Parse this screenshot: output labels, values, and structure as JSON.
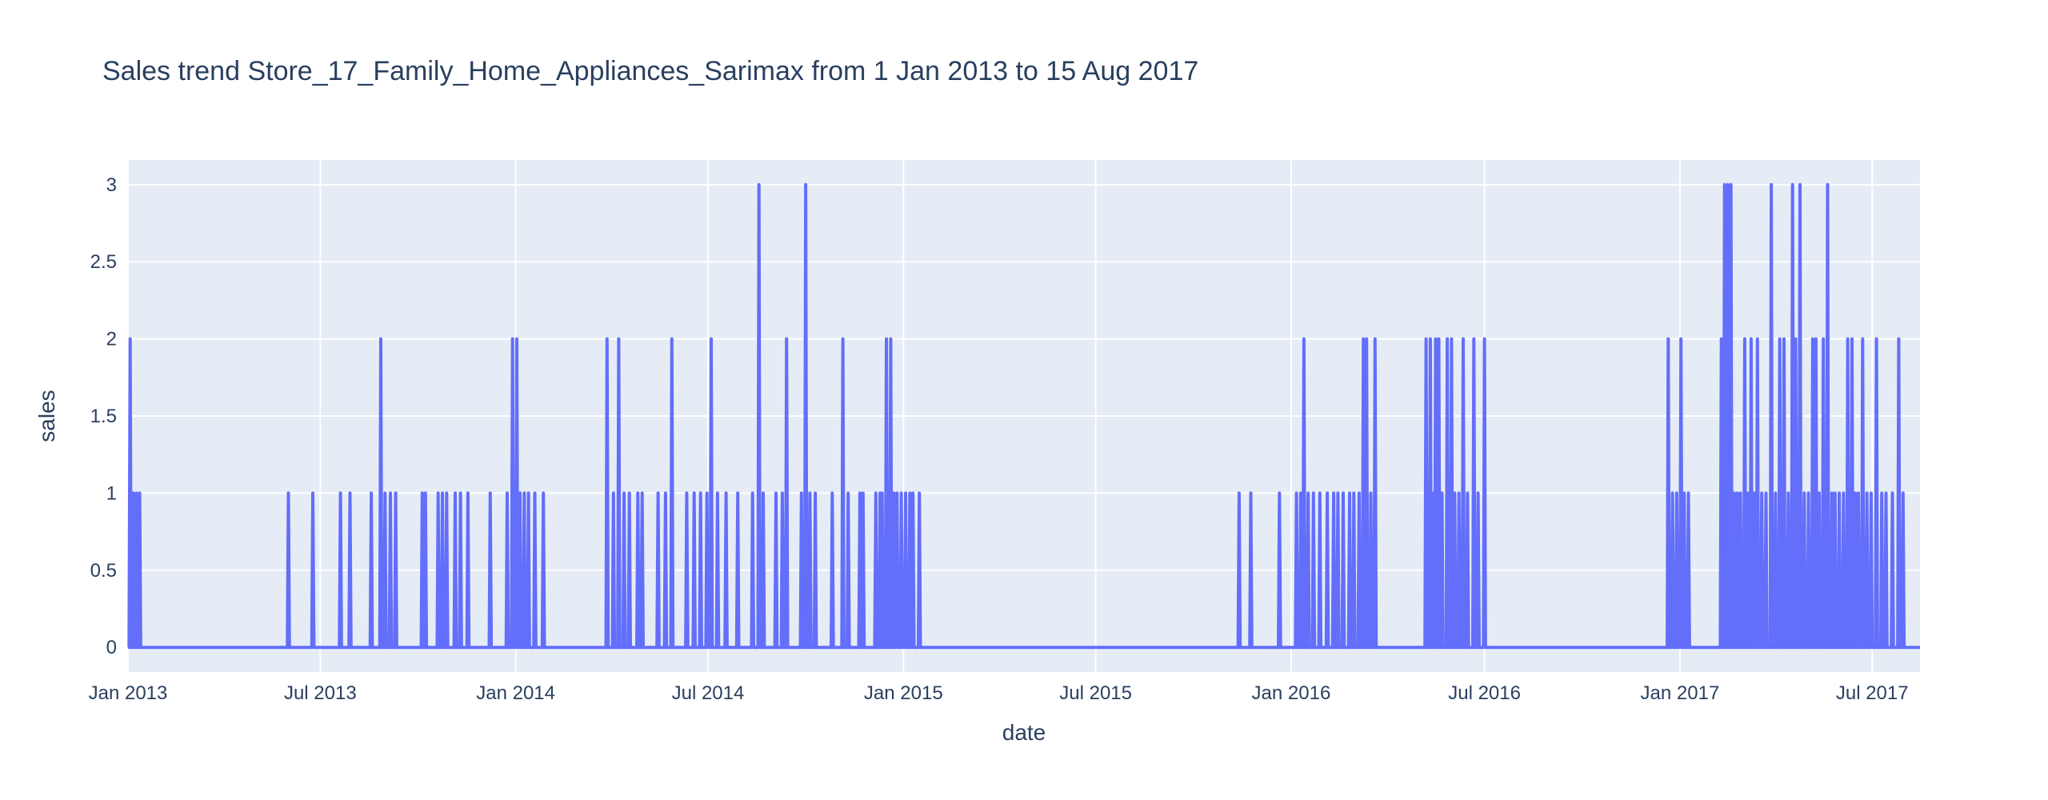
{
  "chart_data": {
    "type": "line",
    "title": "Sales trend Store_17_Family_Home_Appliances_Sarimax from  1 Jan 2013 to 15 Aug 2017",
    "xlabel": "date",
    "ylabel": "sales",
    "x_range": [
      "2013-01-01",
      "2017-08-15"
    ],
    "ylim": [
      -0.16,
      3.16
    ],
    "x_ticks": [
      {
        "date": "2013-01-01",
        "label": "Jan 2013"
      },
      {
        "date": "2013-07-01",
        "label": "Jul 2013"
      },
      {
        "date": "2014-01-01",
        "label": "Jan 2014"
      },
      {
        "date": "2014-07-01",
        "label": "Jul 2014"
      },
      {
        "date": "2015-01-01",
        "label": "Jan 2015"
      },
      {
        "date": "2015-07-01",
        "label": "Jul 2015"
      },
      {
        "date": "2016-01-01",
        "label": "Jan 2016"
      },
      {
        "date": "2016-07-01",
        "label": "Jul 2016"
      },
      {
        "date": "2017-01-01",
        "label": "Jan 2017"
      },
      {
        "date": "2017-07-01",
        "label": "Jul 2017"
      }
    ],
    "y_ticks": [
      {
        "value": 0,
        "label": "0"
      },
      {
        "value": 0.5,
        "label": "0.5"
      },
      {
        "value": 1,
        "label": "1"
      },
      {
        "value": 1.5,
        "label": "1.5"
      },
      {
        "value": 2,
        "label": "2"
      },
      {
        "value": 2.5,
        "label": "2.5"
      },
      {
        "value": 3,
        "label": "3"
      }
    ],
    "grid": true,
    "legend": "none",
    "series": [
      {
        "color": "#636efa",
        "spikes": [
          [
            "2013-01-03",
            2
          ],
          [
            "2013-01-06",
            1
          ],
          [
            "2013-01-09",
            1
          ],
          [
            "2013-01-12",
            1
          ],
          [
            "2013-06-01",
            1
          ],
          [
            "2013-06-24",
            1
          ],
          [
            "2013-07-20",
            1
          ],
          [
            "2013-07-29",
            1
          ],
          [
            "2013-08-18",
            1
          ],
          [
            "2013-08-27",
            2
          ],
          [
            "2013-08-31",
            1
          ],
          [
            "2013-09-05",
            1
          ],
          [
            "2013-09-10",
            1
          ],
          [
            "2013-10-05",
            1
          ],
          [
            "2013-10-08",
            1
          ],
          [
            "2013-10-20",
            1
          ],
          [
            "2013-10-24",
            1
          ],
          [
            "2013-10-28",
            1
          ],
          [
            "2013-11-05",
            1
          ],
          [
            "2013-11-10",
            1
          ],
          [
            "2013-11-17",
            1
          ],
          [
            "2013-12-08",
            1
          ],
          [
            "2013-12-24",
            1
          ],
          [
            "2013-12-29",
            2
          ],
          [
            "2014-01-02",
            2
          ],
          [
            "2014-01-05",
            1
          ],
          [
            "2014-01-09",
            1
          ],
          [
            "2014-01-13",
            1
          ],
          [
            "2014-01-19",
            1
          ],
          [
            "2014-01-27",
            1
          ],
          [
            "2014-03-28",
            2
          ],
          [
            "2014-04-03",
            1
          ],
          [
            "2014-04-08",
            2
          ],
          [
            "2014-04-13",
            1
          ],
          [
            "2014-04-18",
            1
          ],
          [
            "2014-04-26",
            1
          ],
          [
            "2014-04-30",
            1
          ],
          [
            "2014-05-15",
            1
          ],
          [
            "2014-05-22",
            1
          ],
          [
            "2014-05-28",
            2
          ],
          [
            "2014-06-11",
            1
          ],
          [
            "2014-06-18",
            1
          ],
          [
            "2014-06-24",
            1
          ],
          [
            "2014-06-30",
            1
          ],
          [
            "2014-07-04",
            2
          ],
          [
            "2014-07-10",
            1
          ],
          [
            "2014-07-18",
            1
          ],
          [
            "2014-07-29",
            1
          ],
          [
            "2014-08-12",
            1
          ],
          [
            "2014-08-18",
            3
          ],
          [
            "2014-08-22",
            1
          ],
          [
            "2014-09-03",
            1
          ],
          [
            "2014-09-09",
            1
          ],
          [
            "2014-09-13",
            2
          ],
          [
            "2014-09-27",
            1
          ],
          [
            "2014-10-01",
            3
          ],
          [
            "2014-10-05",
            1
          ],
          [
            "2014-10-10",
            1
          ],
          [
            "2014-10-26",
            1
          ],
          [
            "2014-11-05",
            2
          ],
          [
            "2014-11-10",
            1
          ],
          [
            "2014-11-21",
            1
          ],
          [
            "2014-11-24",
            1
          ],
          [
            "2014-12-06",
            1
          ],
          [
            "2014-12-10",
            1
          ],
          [
            "2014-12-12",
            1
          ],
          [
            "2014-12-16",
            2
          ],
          [
            "2014-12-20",
            2
          ],
          [
            "2014-12-23",
            1
          ],
          [
            "2014-12-26",
            1
          ],
          [
            "2014-12-30",
            1
          ],
          [
            "2015-01-03",
            1
          ],
          [
            "2015-01-07",
            1
          ],
          [
            "2015-01-10",
            1
          ],
          [
            "2015-01-16",
            1
          ],
          [
            "2015-11-13",
            1
          ],
          [
            "2015-11-24",
            1
          ],
          [
            "2015-12-21",
            1
          ],
          [
            "2016-01-06",
            1
          ],
          [
            "2016-01-10",
            1
          ],
          [
            "2016-01-13",
            2
          ],
          [
            "2016-01-17",
            1
          ],
          [
            "2016-01-22",
            1
          ],
          [
            "2016-01-28",
            1
          ],
          [
            "2016-02-04",
            1
          ],
          [
            "2016-02-10",
            1
          ],
          [
            "2016-02-14",
            1
          ],
          [
            "2016-02-19",
            1
          ],
          [
            "2016-02-25",
            1
          ],
          [
            "2016-02-29",
            1
          ],
          [
            "2016-03-05",
            1
          ],
          [
            "2016-03-09",
            2
          ],
          [
            "2016-03-12",
            2
          ],
          [
            "2016-03-16",
            1
          ],
          [
            "2016-03-20",
            2
          ],
          [
            "2016-05-07",
            2
          ],
          [
            "2016-05-11",
            2
          ],
          [
            "2016-05-13",
            1
          ],
          [
            "2016-05-16",
            2
          ],
          [
            "2016-05-19",
            2
          ],
          [
            "2016-05-22",
            1
          ],
          [
            "2016-05-27",
            2
          ],
          [
            "2016-05-31",
            2
          ],
          [
            "2016-06-03",
            1
          ],
          [
            "2016-06-07",
            1
          ],
          [
            "2016-06-11",
            2
          ],
          [
            "2016-06-15",
            1
          ],
          [
            "2016-06-21",
            2
          ],
          [
            "2016-06-25",
            1
          ],
          [
            "2016-07-01",
            2
          ],
          [
            "2016-12-21",
            2
          ],
          [
            "2016-12-25",
            1
          ],
          [
            "2016-12-29",
            1
          ],
          [
            "2017-01-02",
            2
          ],
          [
            "2017-01-05",
            1
          ],
          [
            "2017-01-09",
            1
          ],
          [
            "2017-02-09",
            2
          ],
          [
            "2017-02-12",
            3
          ],
          [
            "2017-02-15",
            3
          ],
          [
            "2017-02-18",
            3
          ],
          [
            "2017-02-21",
            1
          ],
          [
            "2017-02-24",
            1
          ],
          [
            "2017-02-27",
            1
          ],
          [
            "2017-03-03",
            2
          ],
          [
            "2017-03-06",
            1
          ],
          [
            "2017-03-09",
            2
          ],
          [
            "2017-03-12",
            1
          ],
          [
            "2017-03-15",
            2
          ],
          [
            "2017-03-19",
            1
          ],
          [
            "2017-03-23",
            1
          ],
          [
            "2017-03-28",
            3
          ],
          [
            "2017-04-01",
            1
          ],
          [
            "2017-04-05",
            2
          ],
          [
            "2017-04-09",
            2
          ],
          [
            "2017-04-13",
            1
          ],
          [
            "2017-04-17",
            3
          ],
          [
            "2017-04-20",
            2
          ],
          [
            "2017-04-24",
            3
          ],
          [
            "2017-04-28",
            1
          ],
          [
            "2017-05-02",
            1
          ],
          [
            "2017-05-06",
            2
          ],
          [
            "2017-05-09",
            2
          ],
          [
            "2017-05-12",
            1
          ],
          [
            "2017-05-16",
            2
          ],
          [
            "2017-05-20",
            3
          ],
          [
            "2017-05-24",
            1
          ],
          [
            "2017-05-27",
            1
          ],
          [
            "2017-05-31",
            1
          ],
          [
            "2017-06-04",
            1
          ],
          [
            "2017-06-08",
            2
          ],
          [
            "2017-06-12",
            2
          ],
          [
            "2017-06-15",
            1
          ],
          [
            "2017-06-18",
            1
          ],
          [
            "2017-06-22",
            2
          ],
          [
            "2017-06-26",
            1
          ],
          [
            "2017-06-30",
            1
          ],
          [
            "2017-07-05",
            2
          ],
          [
            "2017-07-10",
            1
          ],
          [
            "2017-07-14",
            1
          ],
          [
            "2017-07-20",
            1
          ],
          [
            "2017-07-26",
            2
          ],
          [
            "2017-07-30",
            1
          ]
        ]
      }
    ]
  }
}
